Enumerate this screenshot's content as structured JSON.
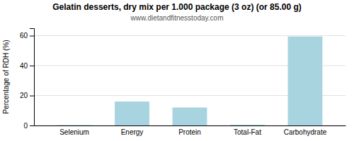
{
  "chart_data": {
    "type": "bar",
    "title": "Gelatin desserts, dry mix per 1.000 package (3 oz) (or 85.00 g)",
    "subtitle": "www.dietandfitnesstoday.com",
    "ylabel": "Percentage of RDH (%)",
    "categories": [
      "Selenium",
      "Energy",
      "Protein",
      "Total-Fat",
      "Carbohydrate"
    ],
    "values": [
      0.3,
      16.0,
      12.0,
      0.5,
      59.5
    ],
    "color": "#a8d4e0",
    "ylim": [
      0,
      65
    ],
    "yticks": [
      0,
      20,
      40,
      60
    ],
    "grid": true
  }
}
